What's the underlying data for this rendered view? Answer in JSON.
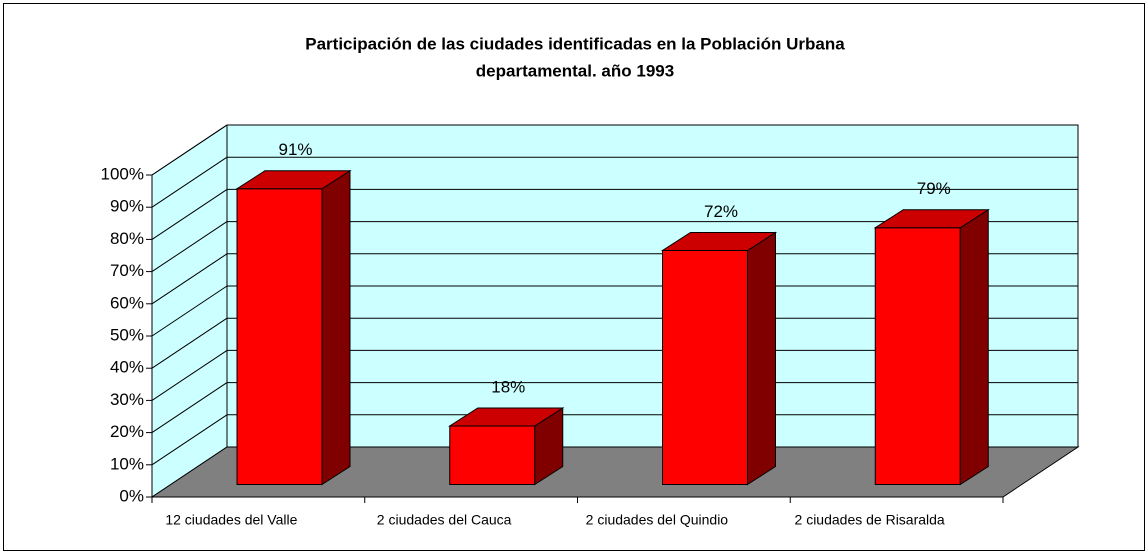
{
  "chart_data": {
    "type": "bar3d",
    "title": [
      "Participación de las ciudades identificadas en la Población Urbana",
      "departamental. año 1993"
    ],
    "categories": [
      "12 ciudades del Valle",
      "2 ciudades del Cauca",
      "2  ciudades del Quindio",
      "2 ciudades de Risaralda"
    ],
    "values": [
      91,
      18,
      72,
      79
    ],
    "value_labels": [
      "91%",
      "18%",
      "72%",
      "79%"
    ],
    "color": "#ff0000",
    "ylim": [
      0,
      100
    ],
    "yticks": [
      {
        "value": 0,
        "label": "0%"
      },
      {
        "value": 10,
        "label": "10%"
      },
      {
        "value": 20,
        "label": "20%"
      },
      {
        "value": 30,
        "label": "30%"
      },
      {
        "value": 40,
        "label": "40%"
      },
      {
        "value": 50,
        "label": "50%"
      },
      {
        "value": 60,
        "label": "60%"
      },
      {
        "value": 70,
        "label": "70%"
      },
      {
        "value": 80,
        "label": "80%"
      },
      {
        "value": 90,
        "label": "90%"
      },
      {
        "value": 100,
        "label": "100%"
      }
    ],
    "grid": true
  }
}
